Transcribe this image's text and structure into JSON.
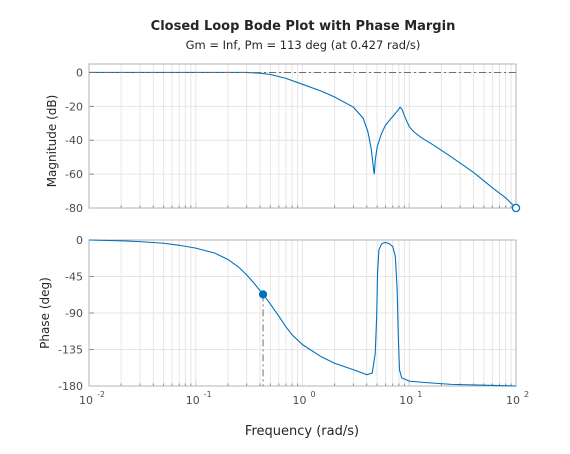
{
  "chart_data": {
    "type": "line",
    "title": "Closed Loop Bode Plot with Phase Margin",
    "subtitle": "Gm = Inf,  Pm = 113 deg (at 0.427 rad/s)",
    "xlabel": "Frequency (rad/s)",
    "xscale": "log",
    "xlim": [
      0.01,
      100
    ],
    "x_ticks": [
      {
        "base": "10",
        "exp": "-2"
      },
      {
        "base": "10",
        "exp": "-1"
      },
      {
        "base": "10",
        "exp": "0"
      },
      {
        "base": "10",
        "exp": "1"
      },
      {
        "base": "10",
        "exp": "2"
      }
    ],
    "x_tick_values": [
      0.01,
      0.1,
      1,
      10,
      100
    ],
    "grid": true,
    "colors": {
      "curve": "#0072bd",
      "reference": "#6e6e6e"
    },
    "magnitude": {
      "ylabel": "Magnitude (dB)",
      "ylim": [
        -80,
        5
      ],
      "y_ticks": [
        "0",
        "-20",
        "-40",
        "-60",
        "-80"
      ],
      "y_tick_values": [
        0,
        -20,
        -40,
        -60,
        -80
      ],
      "reference_line_db": 0,
      "marker": {
        "x": 100,
        "y": -80,
        "style": "open-circle"
      },
      "points": [
        [
          0.01,
          0
        ],
        [
          0.05,
          0
        ],
        [
          0.1,
          0
        ],
        [
          0.2,
          0
        ],
        [
          0.3,
          0
        ],
        [
          0.4,
          -0.4
        ],
        [
          0.5,
          -1.2
        ],
        [
          0.7,
          -3.5
        ],
        [
          1,
          -7
        ],
        [
          1.5,
          -11
        ],
        [
          2,
          -14.5
        ],
        [
          3,
          -20.5
        ],
        [
          3.7,
          -27
        ],
        [
          4.1,
          -35
        ],
        [
          4.4,
          -45
        ],
        [
          4.65,
          -58
        ],
        [
          4.7,
          -60
        ],
        [
          4.8,
          -52
        ],
        [
          5,
          -44
        ],
        [
          5.5,
          -36
        ],
        [
          6,
          -31
        ],
        [
          7,
          -26
        ],
        [
          7.8,
          -22.5
        ],
        [
          8.2,
          -20.5
        ],
        [
          8.6,
          -22
        ],
        [
          9,
          -25.5
        ],
        [
          10,
          -32
        ],
        [
          11,
          -35
        ],
        [
          13,
          -38.5
        ],
        [
          17,
          -43
        ],
        [
          25,
          -50
        ],
        [
          40,
          -59
        ],
        [
          60,
          -68
        ],
        [
          80,
          -74
        ],
        [
          100,
          -80
        ]
      ]
    },
    "phase": {
      "ylabel": "Phase (deg)",
      "ylim": [
        -180,
        0
      ],
      "y_ticks": [
        "0",
        "-45",
        "-90",
        "-135",
        "-180"
      ],
      "y_tick_values": [
        0,
        -45,
        -90,
        -135,
        -180
      ],
      "marker": {
        "x": 0.427,
        "y": -67,
        "style": "filled-circle"
      },
      "points": [
        [
          0.01,
          0
        ],
        [
          0.02,
          -1
        ],
        [
          0.03,
          -2
        ],
        [
          0.05,
          -4
        ],
        [
          0.07,
          -6.5
        ],
        [
          0.1,
          -10
        ],
        [
          0.15,
          -16
        ],
        [
          0.2,
          -24
        ],
        [
          0.25,
          -33
        ],
        [
          0.3,
          -43
        ],
        [
          0.35,
          -53
        ],
        [
          0.427,
          -67
        ],
        [
          0.5,
          -79
        ],
        [
          0.6,
          -94
        ],
        [
          0.7,
          -107
        ],
        [
          0.8,
          -117
        ],
        [
          1,
          -129
        ],
        [
          1.5,
          -144
        ],
        [
          2,
          -152
        ],
        [
          3,
          -160
        ],
        [
          4,
          -166
        ],
        [
          4.5,
          -164
        ],
        [
          4.8,
          -140
        ],
        [
          4.95,
          -95
        ],
        [
          5.05,
          -40
        ],
        [
          5.2,
          -12
        ],
        [
          5.5,
          -5
        ],
        [
          5.9,
          -3
        ],
        [
          6.4,
          -4
        ],
        [
          7,
          -8
        ],
        [
          7.4,
          -20
        ],
        [
          7.7,
          -60
        ],
        [
          7.9,
          -120
        ],
        [
          8.1,
          -160
        ],
        [
          8.5,
          -170
        ],
        [
          10,
          -174
        ],
        [
          15,
          -176
        ],
        [
          25,
          -178
        ],
        [
          50,
          -179
        ],
        [
          100,
          -180
        ]
      ]
    }
  }
}
